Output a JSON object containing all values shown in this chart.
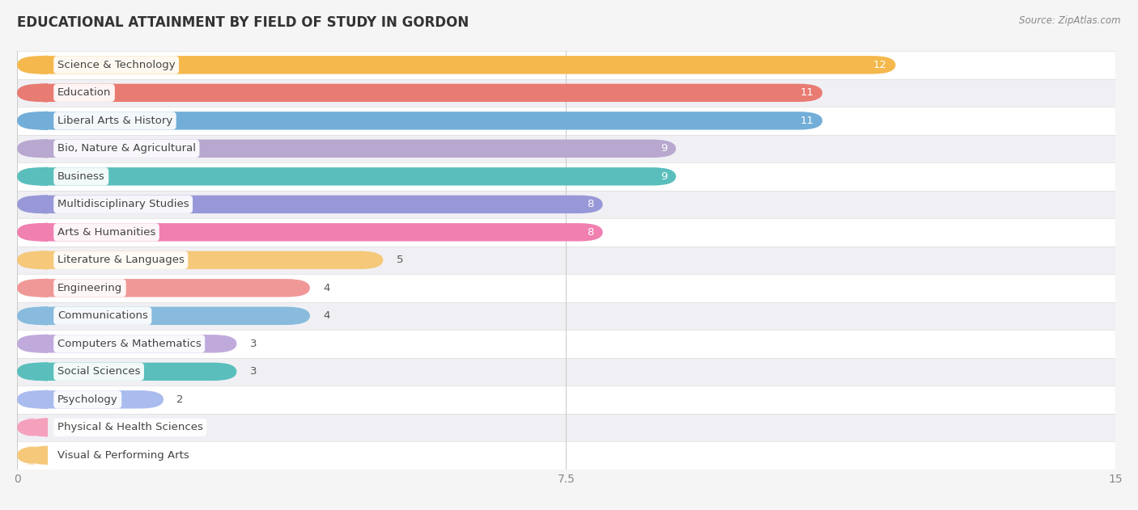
{
  "title": "EDUCATIONAL ATTAINMENT BY FIELD OF STUDY IN GORDON",
  "source": "Source: ZipAtlas.com",
  "categories": [
    "Science & Technology",
    "Education",
    "Liberal Arts & History",
    "Bio, Nature & Agricultural",
    "Business",
    "Multidisciplinary Studies",
    "Arts & Humanities",
    "Literature & Languages",
    "Engineering",
    "Communications",
    "Computers & Mathematics",
    "Social Sciences",
    "Psychology",
    "Physical & Health Sciences",
    "Visual & Performing Arts"
  ],
  "values": [
    12,
    11,
    11,
    9,
    9,
    8,
    8,
    5,
    4,
    4,
    3,
    3,
    2,
    0,
    0
  ],
  "bar_colors": [
    "#F5B84C",
    "#E87B72",
    "#72AED8",
    "#B8A8D0",
    "#5ABFBC",
    "#9898D8",
    "#F080B0",
    "#F5C87A",
    "#F09898",
    "#88BBDD",
    "#C0AADC",
    "#5ABFBC",
    "#AABBEE",
    "#F5A0BC",
    "#F5C87A"
  ],
  "xlim": [
    0,
    15
  ],
  "xticks": [
    0,
    7.5,
    15
  ],
  "bg_color": "#f5f5f5",
  "row_colors": [
    "#ffffff",
    "#f0f0f4"
  ],
  "title_fontsize": 12,
  "label_fontsize": 9.5,
  "value_fontsize": 9.5,
  "bar_height": 0.65,
  "label_color": "#444444",
  "value_inside_threshold": 7
}
